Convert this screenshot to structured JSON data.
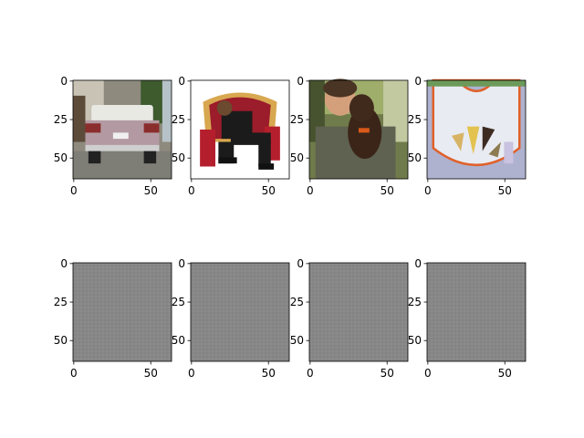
{
  "chart_data": {
    "type": "image-grid",
    "rows": 2,
    "cols": 4,
    "image_size": [
      64,
      64
    ],
    "panels": [
      {
        "row": 0,
        "col": 0,
        "content": "rear view of a white sedan car in a driveway",
        "xticks": [
          "0",
          "50"
        ],
        "yticks": [
          "0",
          "25",
          "50"
        ]
      },
      {
        "row": 0,
        "col": 1,
        "content": "person in dark suit reclining on a red-and-gold throne chair",
        "xticks": [
          "0",
          "50"
        ],
        "yticks": [
          "0",
          "25",
          "50"
        ]
      },
      {
        "row": 0,
        "col": 2,
        "content": "woman holding a dark brown dog outdoors",
        "xticks": [
          "0",
          "50"
        ],
        "yticks": [
          "0",
          "25",
          "50"
        ]
      },
      {
        "row": 0,
        "col": 3,
        "content": "white bib with orange trim and assorted spoons",
        "xticks": [
          "0",
          "50"
        ],
        "yticks": [
          "0",
          "25",
          "50"
        ]
      },
      {
        "row": 1,
        "col": 0,
        "content": "uniform gray image",
        "xticks": [
          "0",
          "50"
        ],
        "yticks": [
          "0",
          "25",
          "50"
        ]
      },
      {
        "row": 1,
        "col": 1,
        "content": "uniform gray image",
        "xticks": [
          "0",
          "50"
        ],
        "yticks": [
          "0",
          "25",
          "50"
        ]
      },
      {
        "row": 1,
        "col": 2,
        "content": "uniform gray image",
        "xticks": [
          "0",
          "50"
        ],
        "yticks": [
          "0",
          "25",
          "50"
        ]
      },
      {
        "row": 1,
        "col": 3,
        "content": "uniform gray image",
        "xticks": [
          "0",
          "50"
        ],
        "yticks": [
          "0",
          "25",
          "50"
        ]
      }
    ],
    "gray_color": "#878787"
  }
}
